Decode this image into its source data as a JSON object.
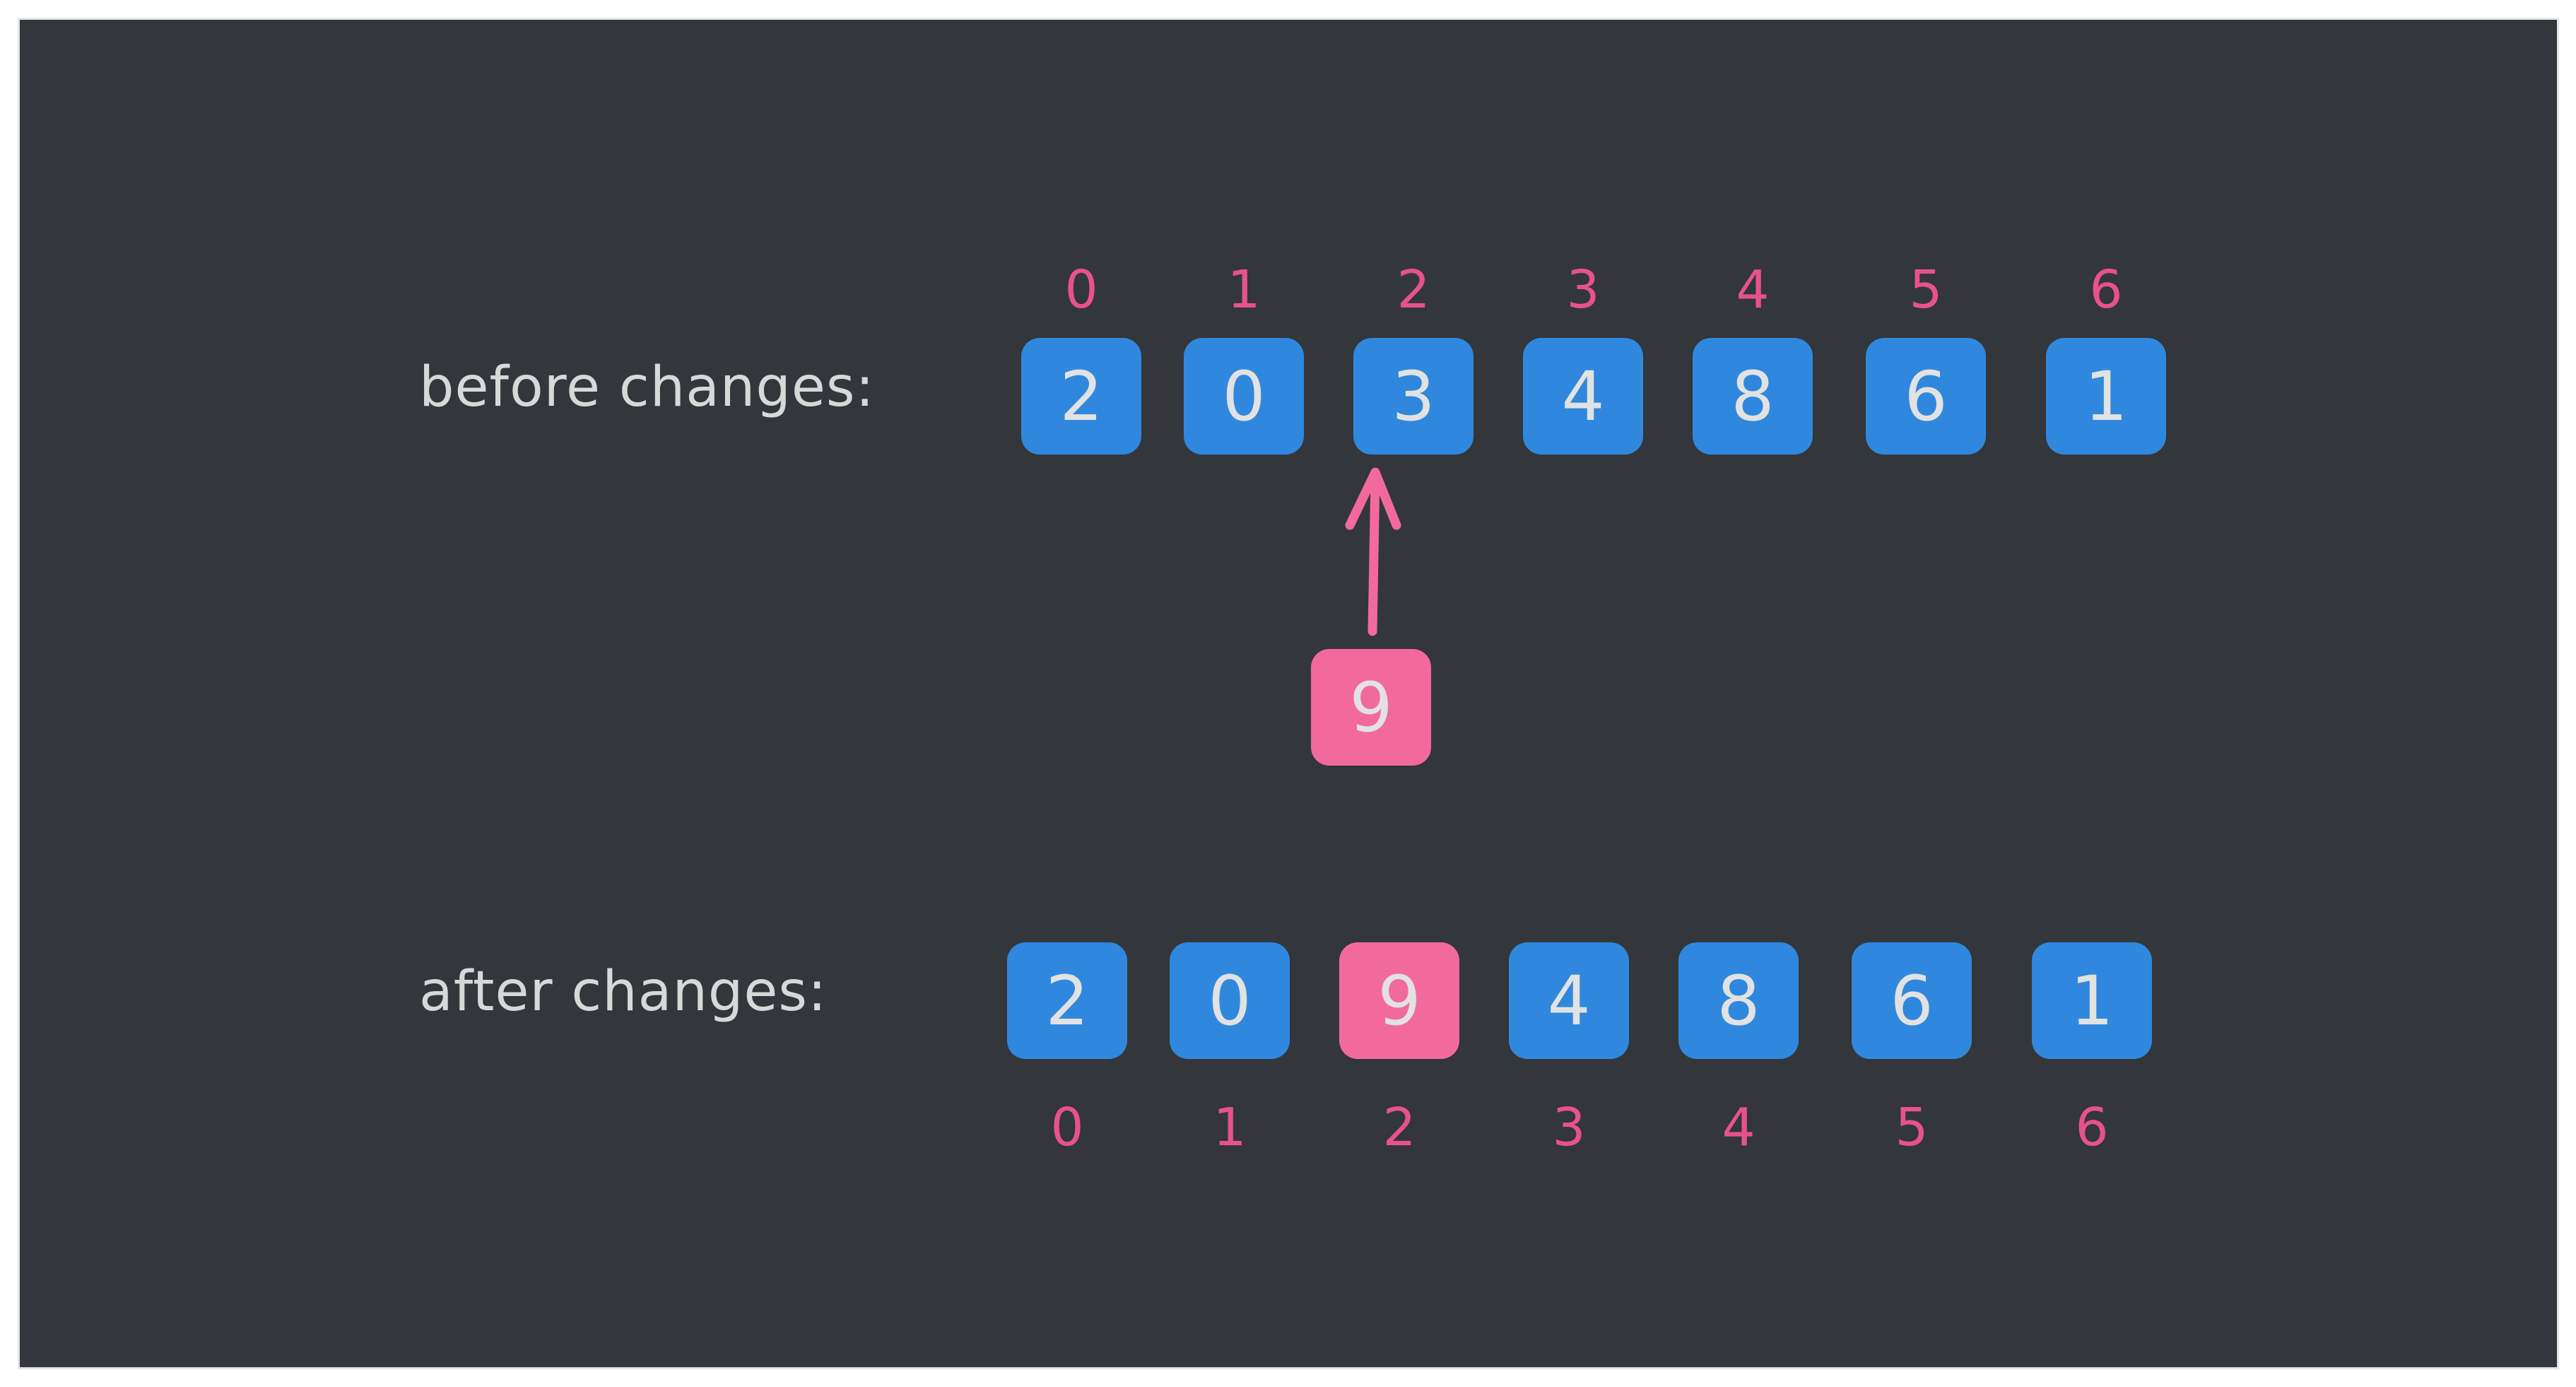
{
  "diagram": {
    "before_label": "before changes:",
    "after_label": "after changes:",
    "indices": [
      "0",
      "1",
      "2",
      "3",
      "4",
      "5",
      "6"
    ],
    "before_values": [
      "2",
      "0",
      "3",
      "4",
      "8",
      "6",
      "1"
    ],
    "after_values": [
      "2",
      "0",
      "9",
      "4",
      "8",
      "6",
      "1"
    ],
    "new_value": "9",
    "colors": {
      "background": "#33363a",
      "cell": "#2f88dd",
      "highlight": "#f26a9c",
      "index_text": "#e8528c",
      "text": "#d8d8d8"
    }
  }
}
